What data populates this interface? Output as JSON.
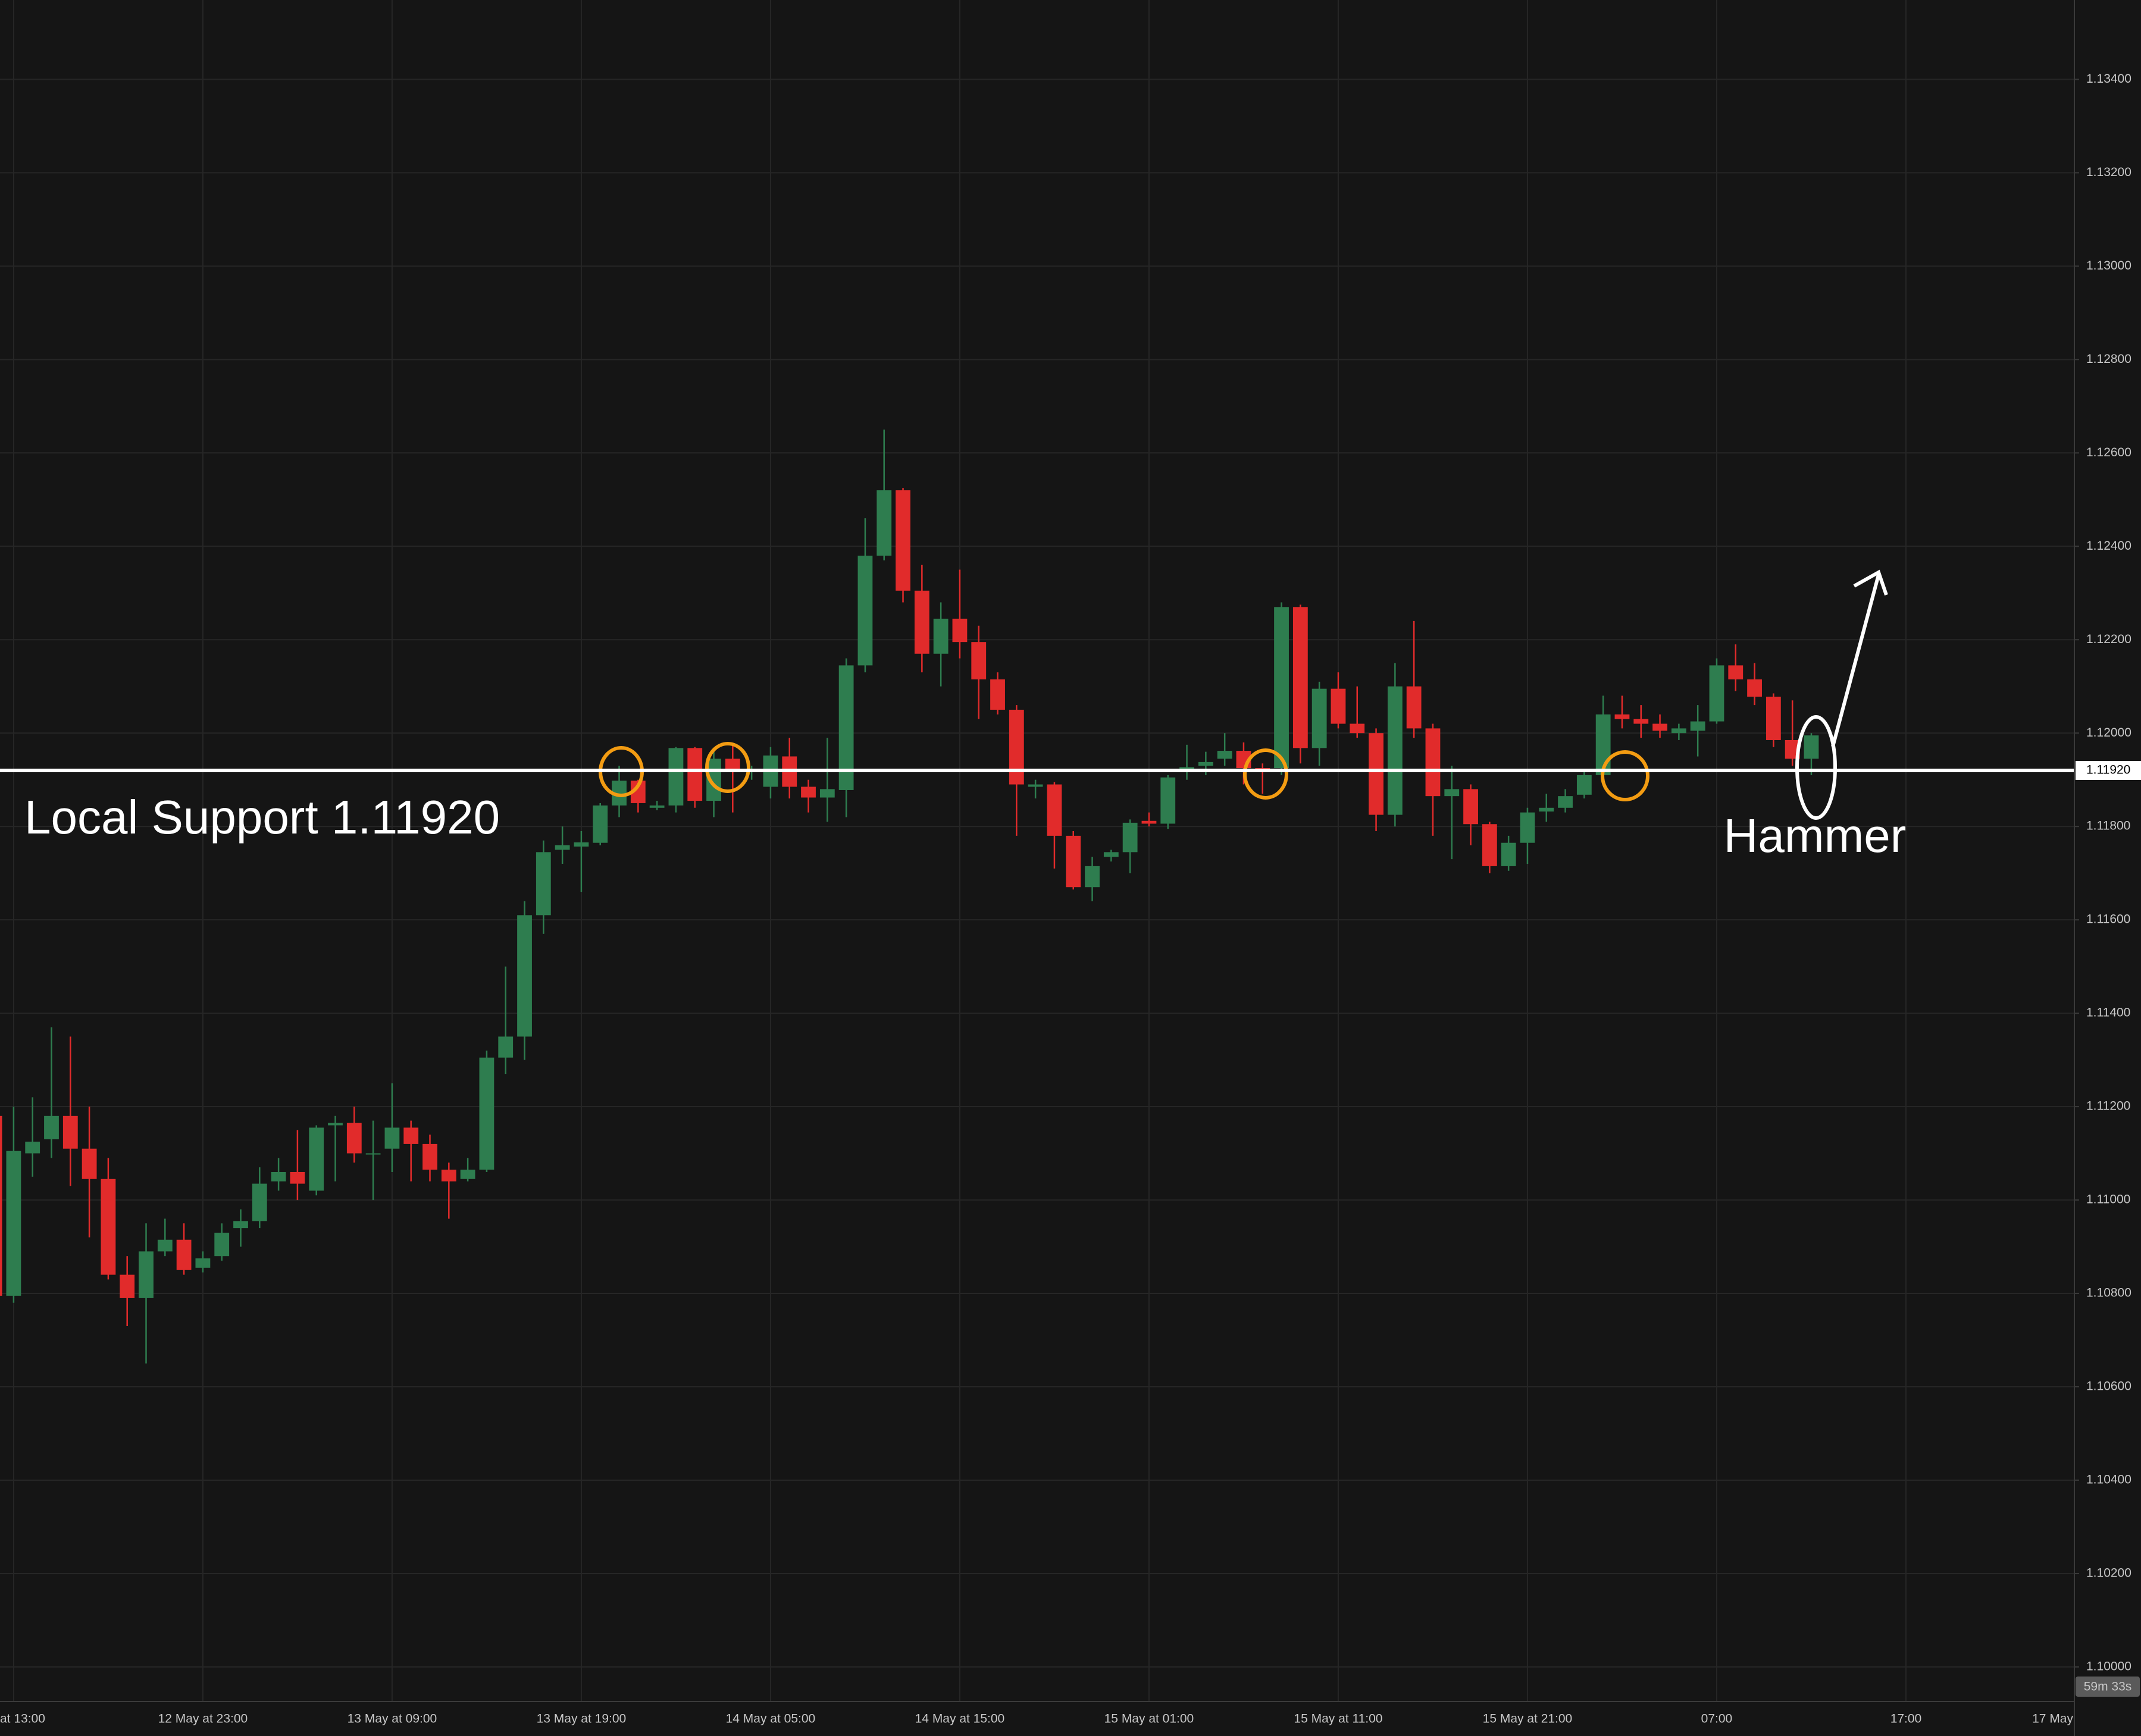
{
  "chart_data": {
    "type": "candlestick",
    "up_color": "#2e7d4f",
    "down_color": "#e12b2b",
    "grid": true,
    "x": [
      -1,
      0,
      1,
      2,
      3,
      4,
      5,
      6,
      7,
      8,
      9,
      10,
      11,
      12,
      13,
      14,
      15,
      16,
      17,
      18,
      19,
      20,
      21,
      22,
      23,
      24,
      25,
      26,
      27,
      28,
      29,
      30,
      31,
      32,
      33,
      34,
      35,
      36,
      37,
      38,
      39,
      40,
      41,
      42,
      43,
      44,
      45,
      46,
      47,
      48,
      49,
      50,
      51,
      52,
      53,
      54,
      55,
      56,
      57,
      58,
      59,
      60,
      61,
      62,
      63,
      64,
      65,
      66,
      67,
      68,
      69,
      70,
      71,
      72,
      73,
      74,
      75,
      76,
      77,
      78,
      79,
      80,
      81,
      82,
      83,
      84,
      85,
      86,
      87,
      88,
      89,
      90,
      91,
      92,
      93,
      94,
      95
    ],
    "open": [
      1.1118,
      1.10795,
      1.111,
      1.1113,
      1.1118,
      1.1111,
      1.11045,
      1.1084,
      1.1079,
      1.1089,
      1.10915,
      1.10855,
      1.1088,
      1.1094,
      1.10955,
      1.1104,
      1.1106,
      1.1102,
      1.1116,
      1.11165,
      1.111,
      1.1111,
      1.11155,
      1.1112,
      1.11065,
      1.11045,
      1.11065,
      1.11305,
      1.1135,
      1.1161,
      1.1175,
      1.11757,
      1.11765,
      1.11845,
      1.11898,
      1.1184,
      1.11845,
      1.11968,
      1.11855,
      1.11945,
      1.1192,
      1.11885,
      1.1195,
      1.11885,
      1.11862,
      1.11878,
      1.12145,
      1.1238,
      1.1252,
      1.12305,
      1.1217,
      1.12245,
      1.12195,
      1.12115,
      1.1205,
      1.11885,
      1.1189,
      1.1178,
      1.1167,
      1.11735,
      1.11745,
      1.11812,
      1.11806,
      1.11918,
      1.1193,
      1.11945,
      1.11962,
      1.11925,
      1.11925,
      1.1227,
      1.11968,
      1.12095,
      1.1202,
      1.12,
      1.11825,
      1.121,
      1.1201,
      1.11865,
      1.1188,
      1.11805,
      1.11715,
      1.11765,
      1.11832,
      1.1184,
      1.11868,
      1.1191,
      1.1204,
      1.1203,
      1.1202,
      1.12,
      1.12005,
      1.12025,
      1.12145,
      1.12115,
      1.12078,
      1.11985,
      1.11945
    ],
    "high": [
      1.1118,
      1.112,
      1.1122,
      1.1137,
      1.1135,
      1.112,
      1.1109,
      1.1088,
      1.1095,
      1.1096,
      1.1095,
      1.1089,
      1.1095,
      1.1098,
      1.1107,
      1.1109,
      1.1115,
      1.1116,
      1.1118,
      1.112,
      1.1117,
      1.1125,
      1.1117,
      1.1114,
      1.1108,
      1.1109,
      1.1132,
      1.115,
      1.1164,
      1.1177,
      1.118,
      1.1179,
      1.1185,
      1.1193,
      1.119,
      1.11855,
      1.1197,
      1.1197,
      1.1196,
      1.11975,
      1.1193,
      1.1197,
      1.1199,
      1.119,
      1.1199,
      1.1216,
      1.1246,
      1.1265,
      1.12525,
      1.1236,
      1.1228,
      1.1235,
      1.1223,
      1.1213,
      1.1206,
      1.119,
      1.11895,
      1.1179,
      1.11735,
      1.1175,
      1.11815,
      1.1183,
      1.1191,
      1.11975,
      1.1196,
      1.12,
      1.1198,
      1.11935,
      1.1228,
      1.12275,
      1.1211,
      1.1213,
      1.121,
      1.1201,
      1.1215,
      1.1224,
      1.1202,
      1.1193,
      1.1189,
      1.1181,
      1.1178,
      1.1184,
      1.1187,
      1.1188,
      1.1192,
      1.1208,
      1.1208,
      1.1206,
      1.1204,
      1.1202,
      1.1206,
      1.1216,
      1.1219,
      1.1215,
      1.12085,
      1.1207,
      1.12
    ],
    "low": [
      1.1077,
      1.1078,
      1.1105,
      1.1109,
      1.1103,
      1.1092,
      1.1083,
      1.1073,
      1.1065,
      1.1088,
      1.1084,
      1.10845,
      1.1087,
      1.109,
      1.1094,
      1.1102,
      1.11,
      1.1101,
      1.1104,
      1.1108,
      1.11,
      1.1106,
      1.1104,
      1.1104,
      1.1096,
      1.1104,
      1.1106,
      1.1127,
      1.113,
      1.1157,
      1.1172,
      1.1166,
      1.1176,
      1.1182,
      1.1183,
      1.11835,
      1.1183,
      1.1184,
      1.1182,
      1.1183,
      1.119,
      1.1186,
      1.1186,
      1.1183,
      1.1181,
      1.1182,
      1.1213,
      1.1237,
      1.1228,
      1.1213,
      1.121,
      1.1216,
      1.1203,
      1.1204,
      1.1178,
      1.1186,
      1.1171,
      1.11665,
      1.1164,
      1.11725,
      1.117,
      1.118,
      1.11795,
      1.119,
      1.1191,
      1.1193,
      1.1189,
      1.1187,
      1.1191,
      1.11935,
      1.1193,
      1.1201,
      1.1199,
      1.1179,
      1.118,
      1.1199,
      1.1178,
      1.1173,
      1.1176,
      1.117,
      1.11705,
      1.1172,
      1.1181,
      1.1183,
      1.1186,
      1.119,
      1.1201,
      1.1199,
      1.1199,
      1.11985,
      1.1195,
      1.1202,
      1.1209,
      1.1206,
      1.1197,
      1.1193,
      1.1191
    ],
    "close": [
      1.10795,
      1.11105,
      1.11125,
      1.1118,
      1.1111,
      1.11045,
      1.1084,
      1.1079,
      1.1089,
      1.10915,
      1.1085,
      1.10875,
      1.1093,
      1.10955,
      1.11035,
      1.1106,
      1.11035,
      1.11155,
      1.11165,
      1.111,
      1.111,
      1.11155,
      1.1112,
      1.11065,
      1.1104,
      1.11065,
      1.11305,
      1.1135,
      1.1161,
      1.11745,
      1.1176,
      1.11766,
      1.11845,
      1.11898,
      1.1185,
      1.11845,
      1.11968,
      1.11855,
      1.11945,
      1.1192,
      1.11922,
      1.11952,
      1.11885,
      1.11862,
      1.1188,
      1.12145,
      1.1238,
      1.1252,
      1.12305,
      1.1217,
      1.12245,
      1.12195,
      1.12115,
      1.1205,
      1.1189,
      1.1189,
      1.1178,
      1.1167,
      1.11715,
      1.11745,
      1.11808,
      1.11806,
      1.11905,
      1.11927,
      1.11938,
      1.11962,
      1.11925,
      1.1192,
      1.1227,
      1.11968,
      1.12095,
      1.1202,
      1.12,
      1.11825,
      1.121,
      1.1201,
      1.11865,
      1.1188,
      1.11805,
      1.11715,
      1.11765,
      1.1183,
      1.1184,
      1.11865,
      1.1191,
      1.1204,
      1.1203,
      1.1202,
      1.12005,
      1.1201,
      1.12025,
      1.12145,
      1.12115,
      1.12078,
      1.11985,
      1.11945,
      1.11995
    ],
    "xlim": [
      -0.72,
      108.9
    ],
    "ylim": [
      1.09926,
      1.1357
    ],
    "xticks": [
      {
        "value": 0,
        "label": "at 13:00"
      },
      {
        "value": 10,
        "label": "12 May at 23:00"
      },
      {
        "value": 20,
        "label": "13 May at 09:00"
      },
      {
        "value": 30,
        "label": "13 May at 19:00"
      },
      {
        "value": 40,
        "label": "14 May at 05:00"
      },
      {
        "value": 50,
        "label": "14 May at 15:00"
      },
      {
        "value": 60,
        "label": "15 May at 01:00"
      },
      {
        "value": 70,
        "label": "15 May at 11:00"
      },
      {
        "value": 80,
        "label": "15 May at 21:00"
      },
      {
        "value": 90,
        "label": "07:00"
      },
      {
        "value": 100,
        "label": "17:00"
      },
      {
        "value": 110,
        "label": "17 May"
      }
    ],
    "yticks": [
      {
        "value": 1.1,
        "label": "1.10000"
      },
      {
        "value": 1.102,
        "label": "1.10200"
      },
      {
        "value": 1.104,
        "label": "1.10400"
      },
      {
        "value": 1.106,
        "label": "1.10600"
      },
      {
        "value": 1.108,
        "label": "1.10800"
      },
      {
        "value": 1.11,
        "label": "1.11000"
      },
      {
        "value": 1.112,
        "label": "1.11200"
      },
      {
        "value": 1.114,
        "label": "1.11400"
      },
      {
        "value": 1.116,
        "label": "1.11600"
      },
      {
        "value": 1.118,
        "label": "1.11800"
      },
      {
        "value": 1.12,
        "label": "1.12000"
      },
      {
        "value": 1.122,
        "label": "1.12200"
      },
      {
        "value": 1.124,
        "label": "1.12400"
      },
      {
        "value": 1.126,
        "label": "1.12600"
      },
      {
        "value": 1.128,
        "label": "1.12800"
      },
      {
        "value": 1.13,
        "label": "1.13000"
      },
      {
        "value": 1.132,
        "label": "1.13200"
      },
      {
        "value": 1.134,
        "label": "1.13400"
      }
    ],
    "support": {
      "value": 1.1192,
      "label": "1.11920"
    },
    "annotations": [
      "Local Support 1.11920",
      "Hammer"
    ],
    "countdown": "59m 33s"
  }
}
